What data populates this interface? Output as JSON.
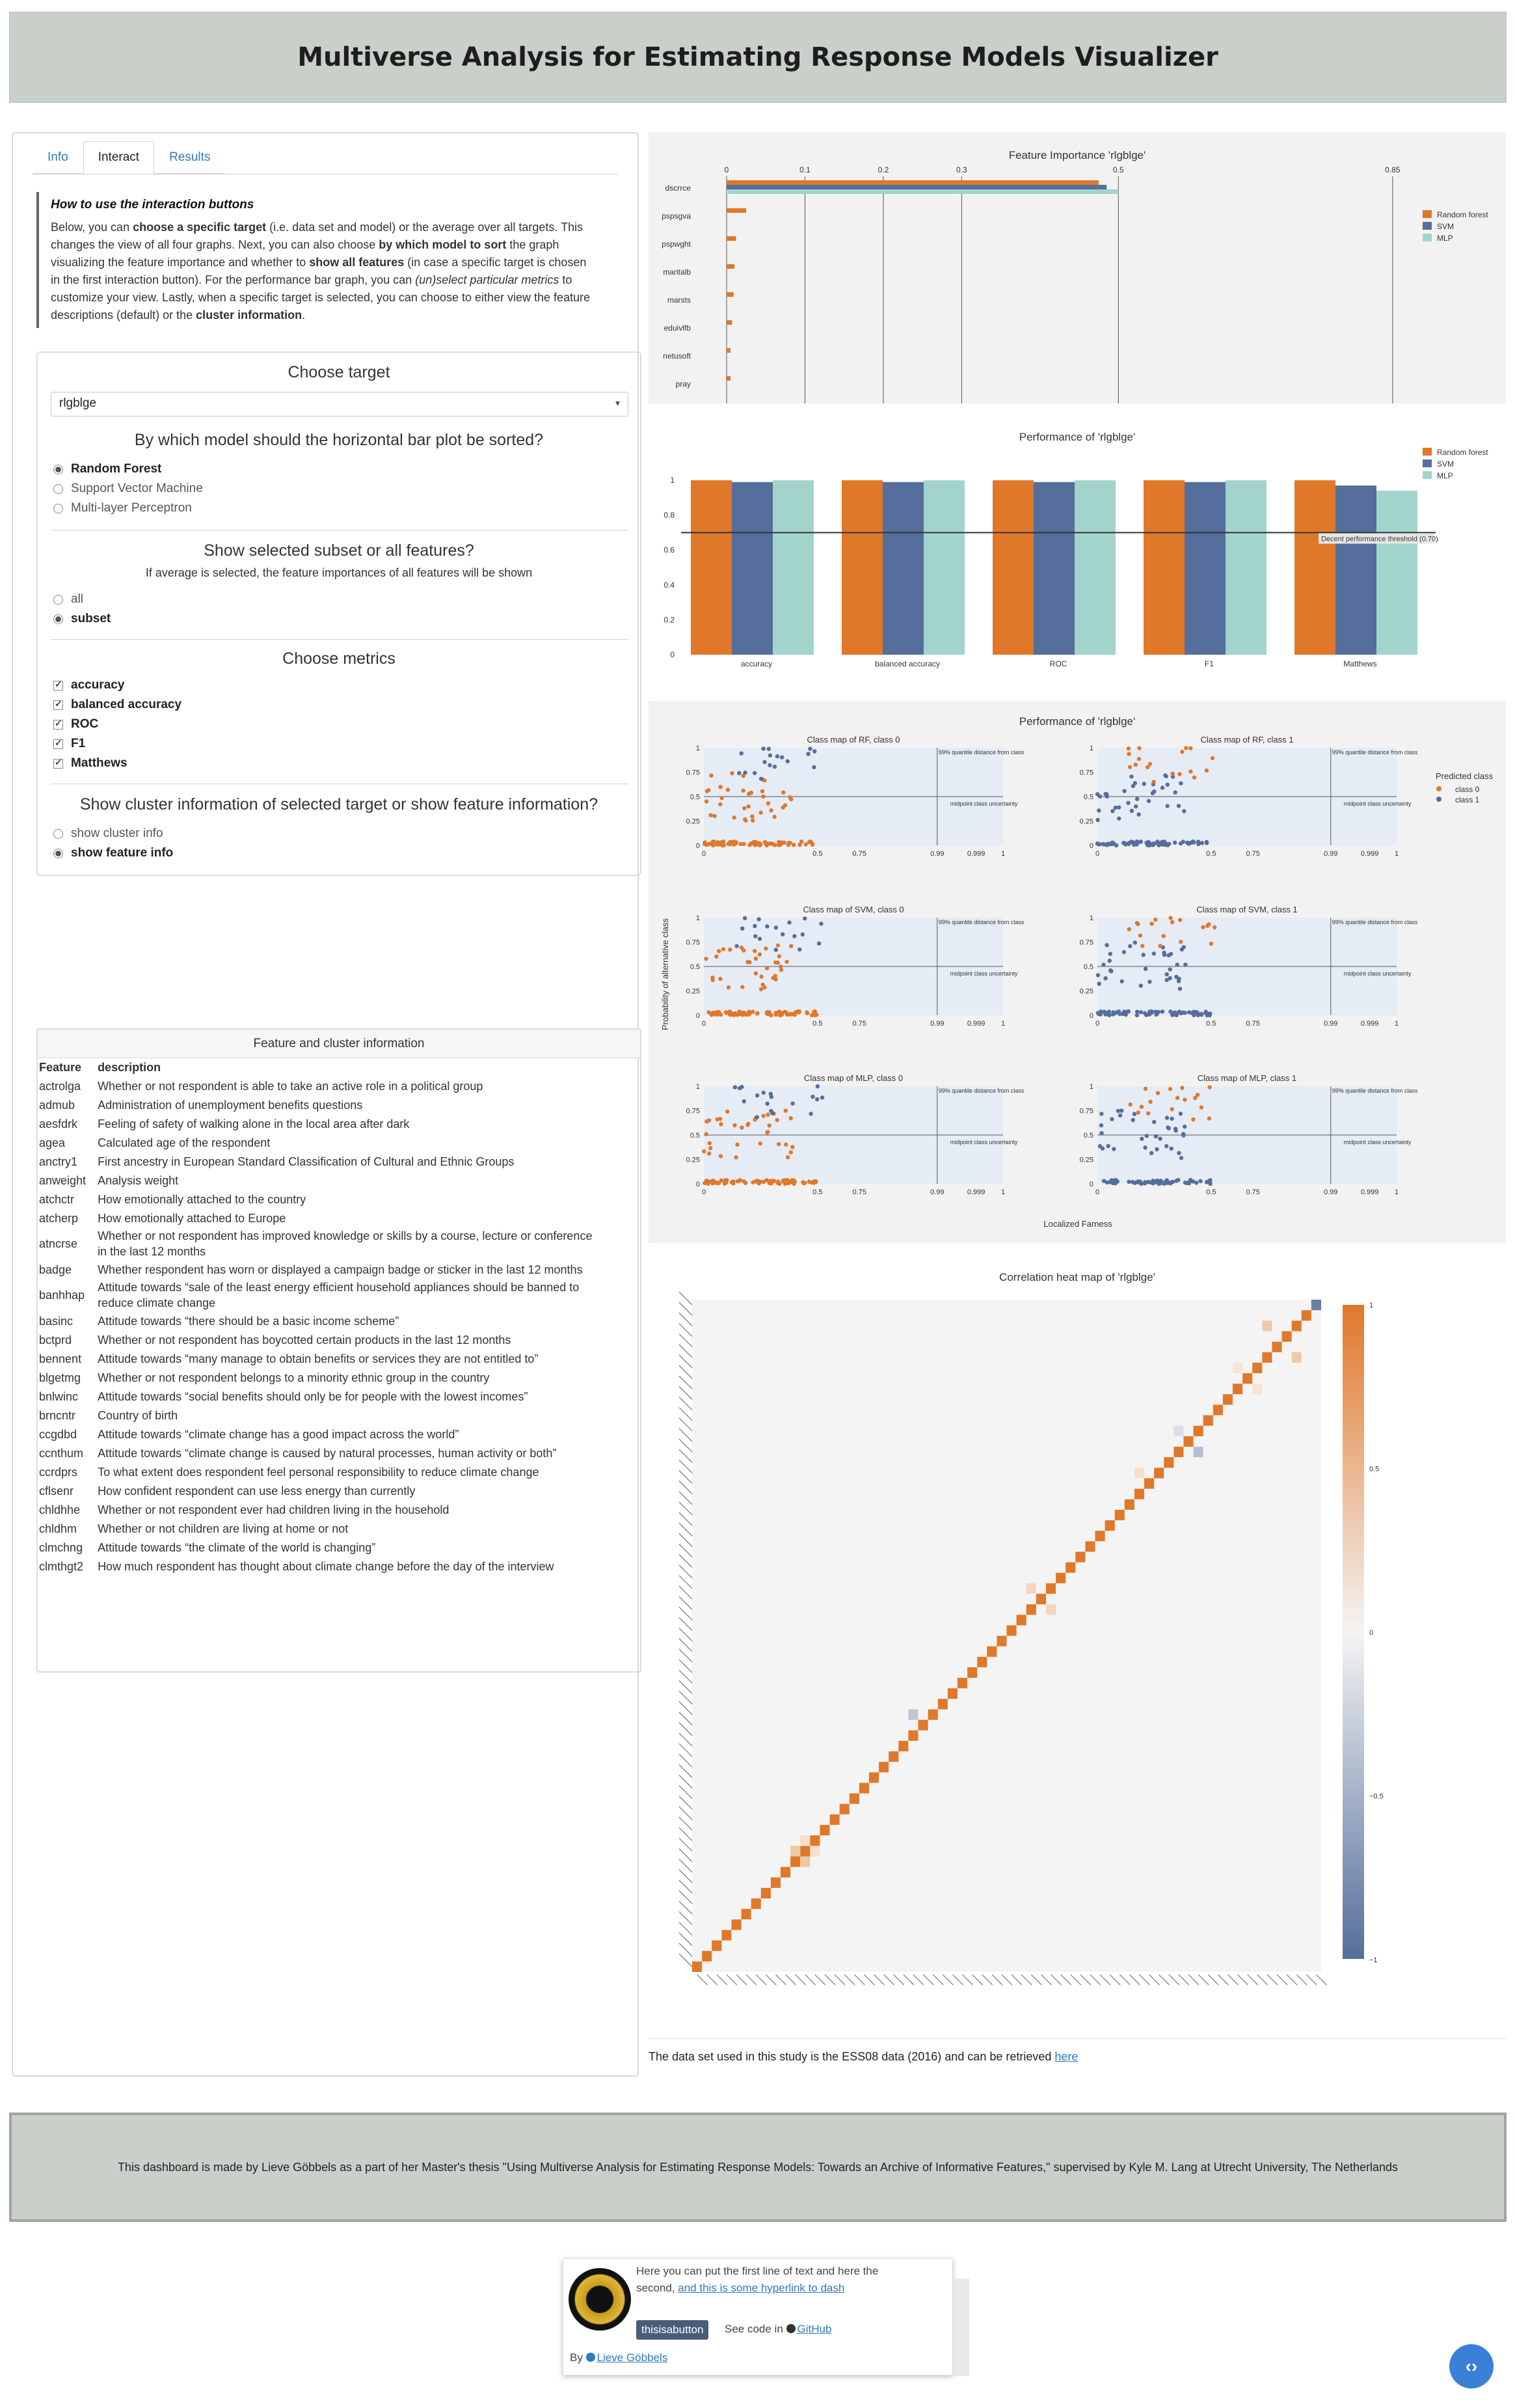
{
  "header": {
    "title": "Multiverse Analysis for Estimating Response Models Visualizer"
  },
  "tabs": [
    {
      "label": "Info"
    },
    {
      "label": "Interact"
    },
    {
      "label": "Results"
    }
  ],
  "howto": {
    "heading": "How to use the interaction buttons",
    "lines": [
      [
        "Below, you can ",
        {
          "b": "choose a specific target"
        },
        " (i.e. data set and model) or the average over all targets. This"
      ],
      [
        "changes the view of all four graphs. Next, you can also choose ",
        {
          "b": "by which model to sort"
        },
        " the graph"
      ],
      [
        "visualizing the feature importance and whether to ",
        {
          "b": "show all features"
        },
        " (in case a specific target is chosen"
      ],
      [
        "in the first interaction button). For the performance bar graph, you can ",
        {
          "i": "(un)select particular metrics"
        },
        " to"
      ],
      [
        "customize your view. Lastly, when a specific target is selected, you can choose to either view the feature"
      ],
      [
        "descriptions (default) or the ",
        {
          "b": "cluster information"
        },
        "."
      ]
    ]
  },
  "controls": {
    "target_title": "Choose target",
    "target_value": "rlgblge",
    "sort_title": "By which model should the horizontal bar plot be sorted?",
    "sort_options": [
      "Random Forest",
      "Support Vector Machine",
      "Multi-layer Perceptron"
    ],
    "sort_selected": 0,
    "subset_title": "Show selected subset or all features?",
    "subset_sub": "If average is selected, the feature importances of all features will be shown",
    "subset_options": [
      "all",
      "subset"
    ],
    "subset_selected": 1,
    "metrics_title": "Choose metrics",
    "metrics": [
      "accuracy",
      "balanced accuracy",
      "ROC",
      "F1",
      "Matthews"
    ],
    "cluster_title": "Show cluster information of selected target or show feature information?",
    "cluster_options": [
      "show cluster info",
      "show feature info"
    ],
    "cluster_selected": 1
  },
  "feature_info": {
    "title": "Feature and cluster information",
    "col_feature": "Feature",
    "col_description": "description",
    "rows": [
      [
        "actrolga",
        "Whether or not respondent is able to take an active role in a political group"
      ],
      [
        "admub",
        "Administration of unemployment benefits questions"
      ],
      [
        "aesfdrk",
        "Feeling of safety of walking alone in the local area after dark"
      ],
      [
        "agea",
        "Calculated age of the respondent"
      ],
      [
        "anctry1",
        "First ancestry in European Standard Classification of Cultural and Ethnic Groups"
      ],
      [
        "anweight",
        "Analysis weight"
      ],
      [
        "atchctr",
        "How emotionally attached to the country"
      ],
      [
        "atcherp",
        "How emotionally attached to Europe"
      ],
      [
        "atncrse",
        "Whether or not respondent has improved knowledge or skills by a course, lecture or conference in the last 12 months"
      ],
      [
        "badge",
        "Whether respondent has worn or displayed a campaign badge or sticker in the last 12 months"
      ],
      [
        "banhhap",
        "Attitude towards “sale of the least energy efficient household appliances should be banned to reduce climate change"
      ],
      [
        "basinc",
        "Attitude towards “there should be a basic income scheme”"
      ],
      [
        "bctprd",
        "Whether or not respondent has boycotted certain products in the last 12 months"
      ],
      [
        "bennent",
        "Attitude towards “many manage to obtain benefits or services they are not entitled to”"
      ],
      [
        "blgetmg",
        "Whether or not respondent belongs to a minority ethnic group in the country"
      ],
      [
        "bnlwinc",
        "Attitude towards “social benefits should only be for people with the lowest incomes”"
      ],
      [
        "brncntr",
        "Country of birth"
      ],
      [
        "ccgdbd",
        "Attitude towards “climate change has a good impact across the world”"
      ],
      [
        "ccnthum",
        "Attitude towards “climate change is caused by natural processes, human activity or both”"
      ],
      [
        "ccrdprs",
        "To what extent does respondent feel personal responsibility to reduce climate change"
      ],
      [
        "cflsenr",
        "How confident respondent can use less energy than currently"
      ],
      [
        "chldhhe",
        "Whether or not respondent ever had children living in the household"
      ],
      [
        "chldhm",
        "Whether or not children are living at home or not"
      ],
      [
        "clmchng",
        "Attitude towards “the climate of the world is changing”"
      ],
      [
        "clmthgt2",
        "How much respondent has thought about climate change before the day of the interview"
      ]
    ]
  },
  "fi_chart": {
    "title": "Feature Importance 'rlgblge'",
    "x_ticks": [
      "0",
      "0.1",
      "0.2",
      "0.3",
      "0.5",
      "0.85"
    ],
    "features": [
      "dscrrce",
      "pspsgva",
      "pspwght",
      "maritalb",
      "marsts",
      "eduivlfb",
      "netusoft",
      "pray"
    ],
    "series": [
      {
        "name": "Random forest",
        "color": "#e0782a",
        "values": [
          0.475,
          0.025,
          0.012,
          0.01,
          0.009,
          0.007,
          0.005,
          0.005
        ]
      },
      {
        "name": "SVM",
        "color": "#556e9b",
        "values": [
          0.485,
          0.0,
          0.0,
          0.0,
          0.0,
          0.0,
          0.0,
          0.0
        ]
      },
      {
        "name": "MLP",
        "color": "#a2d4cc",
        "values": [
          0.5,
          0.0,
          0.0,
          0.0,
          0.0,
          0.0,
          0.0,
          0.0
        ]
      }
    ]
  },
  "perf_chart": {
    "title": "Performance of 'rlgblge'",
    "categories": [
      "accuracy",
      "balanced accuracy",
      "ROC",
      "F1",
      "Matthews"
    ],
    "y_ticks": [
      "0",
      "0.2",
      "0.4",
      "0.6",
      "0.8",
      "1"
    ],
    "series": [
      {
        "name": "Random forest",
        "color": "#e0782a",
        "values": [
          1.0,
          1.0,
          1.0,
          1.0,
          1.0
        ]
      },
      {
        "name": "SVM",
        "color": "#556e9b",
        "values": [
          0.99,
          0.99,
          0.99,
          0.99,
          0.97
        ]
      },
      {
        "name": "MLP",
        "color": "#a2d4cc",
        "values": [
          1.0,
          1.0,
          1.0,
          1.0,
          0.94
        ]
      }
    ],
    "threshold": 0.7,
    "threshold_label": "Decent performance threshold (0.70)"
  },
  "classmap": {
    "title": "Performance of 'rlgblge'",
    "ylabel": "Probability of alternative class",
    "xlabel": "Localized Farness",
    "subtitles": [
      "Class map of RF, class 0",
      "Class map of RF, class 1",
      "Class map of SVM, class 0",
      "Class map of SVM, class 1",
      "Class map of MLP, class 0",
      "Class map of MLP, class 1"
    ],
    "x_ticks": [
      "0",
      "0.5",
      "0.75",
      "0.99",
      "0.999",
      "1"
    ],
    "y_ticks": [
      "0",
      "0.25",
      "0.5",
      "0.75",
      "1"
    ],
    "quantile_label": "99% quantile distance from class",
    "midpoint_label": "midpoint class uncertainty",
    "legend_title": "Predicted class",
    "legend": [
      "class 0",
      "class 1"
    ]
  },
  "heatmap": {
    "title": "Correlation heat map of 'rlgblge'",
    "scale_ticks": [
      "1",
      "0.5",
      "0",
      "−0.5",
      "−1"
    ]
  },
  "dataset_note": {
    "text": "The data set used in this study is the ESS08 data (2016) and can be retrieved ",
    "link": "here"
  },
  "footer": {
    "text": "This dashboard is made by Lieve Göbbels as a part of her Master's thesis \"Using Multiverse Analysis for Estimating Response Models: Towards an Archive of Informative Features,\" supervised by Kyle M. Lang at Utrecht University, The Netherlands"
  },
  "card": {
    "line1": "Here you can put the first line of text and here the",
    "line2": "second, ",
    "line2_link": "and this is some hyperlink to dash",
    "button": "thisisabutton",
    "code_text": "See code in ",
    "code_link": "GitHub",
    "by": "By ",
    "author": "Lieve Göbbels"
  },
  "colors": {
    "orange": "#e0782a",
    "blue": "#556e9b",
    "teal": "#a2d4cc",
    "header_bg": "#c9d0ca",
    "nav_button": "#3b7fd8"
  }
}
